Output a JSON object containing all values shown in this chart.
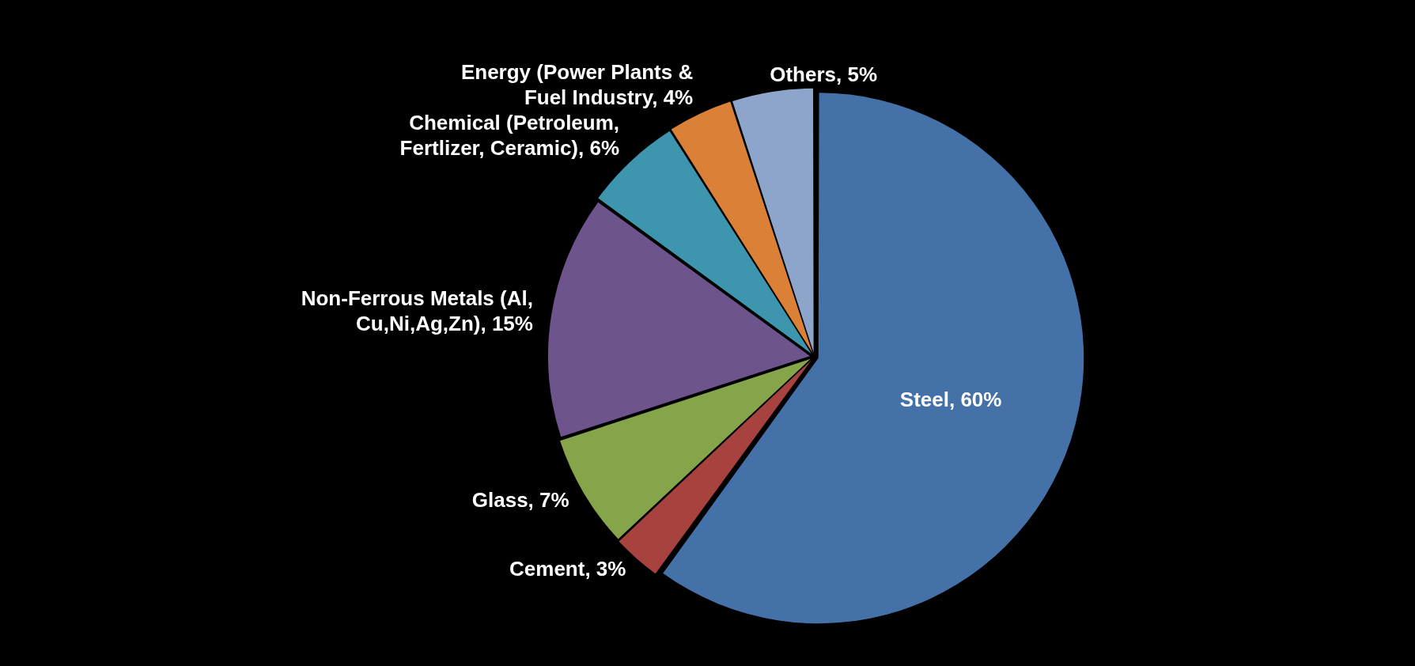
{
  "chart_data": {
    "type": "pie",
    "categories": [
      "Steel, 60%",
      "Cement, 3%",
      "Glass, 7%",
      "Non-Ferrous Metals (Al, Cu,Ni,Ag,Zn), 15%",
      "Chemical (Petroleum, Fertlizer, Ceramic), 6%",
      "Energy (Power Plants & Fuel Industry, 4%",
      "Others, 5%"
    ],
    "values": [
      60,
      3,
      7,
      15,
      6,
      4,
      5
    ],
    "colors": [
      "#4471a7",
      "#a8423f",
      "#86a44a",
      "#6e548d",
      "#3d96ae",
      "#da8137",
      "#8ea5cb"
    ],
    "legend": false
  }
}
